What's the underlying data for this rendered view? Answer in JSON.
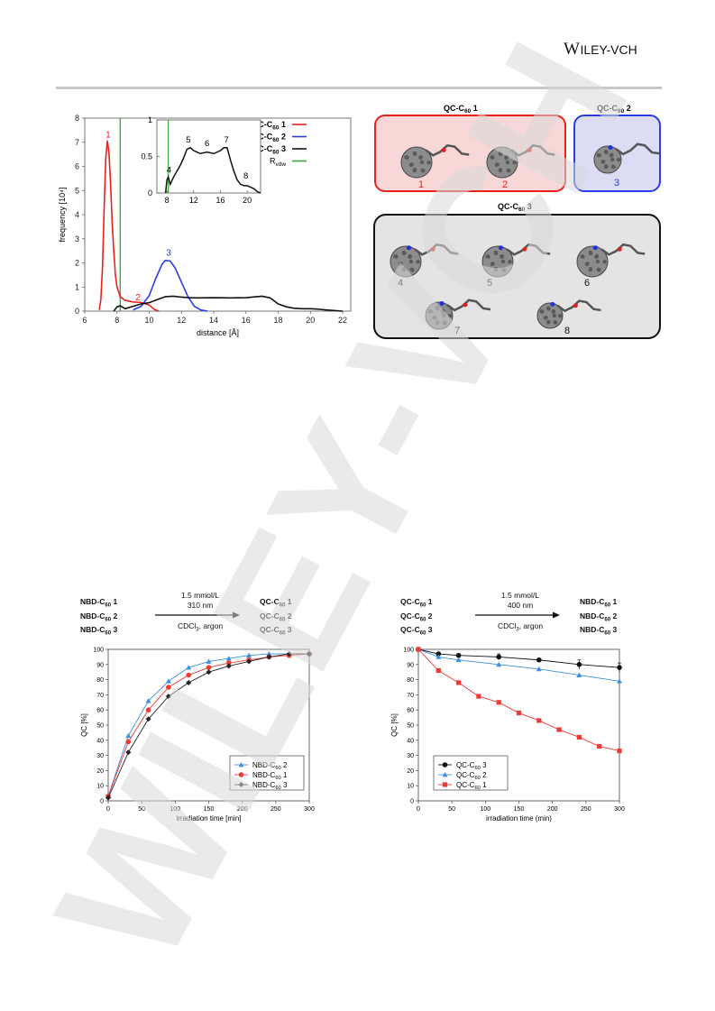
{
  "header": {
    "logo_main": "W",
    "logo_rest": "ILEY",
    "logo_suffix": "-VCH"
  },
  "watermark": {
    "text": "WILEY-VCH",
    "color": "#d9d9d9"
  },
  "panel_a": {
    "title_main": "QC-C",
    "title_sub": "60",
    "chart_data": {
      "type": "line",
      "xlabel": "distance [Å]",
      "ylabel": "frequency [10⁴]",
      "xlim": [
        6,
        22.5
      ],
      "ylim": [
        0,
        8
      ],
      "xticks": [
        6,
        8,
        10,
        12,
        14,
        16,
        18,
        20,
        22
      ],
      "yticks": [
        0,
        1,
        2,
        3,
        4,
        5,
        6,
        7,
        8
      ],
      "series": [
        {
          "name": "QC-C60 1",
          "color": "#e8221d",
          "x": [
            6.9,
            7.0,
            7.1,
            7.2,
            7.3,
            7.4,
            7.5,
            7.6,
            7.7,
            7.8,
            7.9,
            8.0,
            8.2,
            8.5,
            9.0,
            9.5,
            10.0,
            10.3,
            10.6
          ],
          "y": [
            0.05,
            0.5,
            1.8,
            4.2,
            6.3,
            7.05,
            6.6,
            5.3,
            3.7,
            2.5,
            1.5,
            1.0,
            0.6,
            0.45,
            0.38,
            0.36,
            0.25,
            0.08,
            0.0
          ]
        },
        {
          "name": "QC-C60 2",
          "color": "#2a3ee8",
          "x": [
            9.0,
            9.5,
            10.0,
            10.4,
            10.8,
            11.0,
            11.3,
            11.6,
            12.0,
            12.4,
            12.8,
            13.2,
            13.6
          ],
          "y": [
            0.05,
            0.2,
            0.65,
            1.35,
            1.95,
            2.1,
            2.08,
            1.8,
            1.2,
            0.6,
            0.2,
            0.05,
            0.0
          ]
        },
        {
          "name": "QC-C60 3",
          "color": "#111111",
          "x": [
            7.8,
            8.0,
            8.2,
            8.5,
            9.0,
            9.5,
            10.0,
            10.5,
            11.0,
            11.5,
            12.0,
            12.5,
            13.0,
            14.0,
            15.0,
            16.0,
            17.0,
            17.5,
            18.0,
            18.5,
            19.0,
            19.5,
            20.0,
            20.5,
            21.0,
            22.0
          ],
          "y": [
            0.0,
            0.18,
            0.22,
            0.1,
            0.2,
            0.3,
            0.35,
            0.48,
            0.6,
            0.62,
            0.58,
            0.56,
            0.55,
            0.56,
            0.55,
            0.56,
            0.62,
            0.55,
            0.3,
            0.18,
            0.12,
            0.1,
            0.1,
            0.08,
            0.05,
            0.0
          ]
        }
      ],
      "vline": {
        "name": "R_vdw",
        "x": 8.2,
        "color": "#3aa83a"
      },
      "peak_labels": [
        {
          "text": "1",
          "x": 7.45,
          "y": 7.2,
          "color": "#e8221d"
        },
        {
          "text": "2",
          "x": 9.3,
          "y": 0.45,
          "color": "#e8221d"
        },
        {
          "text": "3",
          "x": 11.2,
          "y": 2.3,
          "color": "#2a3ee8"
        }
      ],
      "legend": [
        {
          "main": "QC-C",
          "sub": "60",
          "suffix": " 1",
          "color": "#e8221d"
        },
        {
          "main": "QC-C",
          "sub": "60",
          "suffix": " 2",
          "color": "#2a3ee8"
        },
        {
          "main": "QC-C",
          "sub": "60",
          "suffix": " 3",
          "color": "#111111"
        },
        {
          "main": "R",
          "sub": "vdw",
          "suffix": "",
          "color": "#3aa83a"
        }
      ],
      "inset": {
        "xlim": [
          6.5,
          22
        ],
        "ylim": [
          0,
          1
        ],
        "xticks": [
          8,
          12,
          16,
          20
        ],
        "yticks": [
          0,
          0.5,
          1
        ],
        "yticklabels": [
          "0",
          "0.5",
          "1"
        ],
        "x": [
          7.8,
          8.0,
          8.2,
          8.5,
          9.0,
          9.5,
          10.0,
          10.5,
          11.0,
          11.5,
          12.0,
          12.5,
          13.0,
          14.0,
          15.0,
          16.0,
          16.5,
          17.0,
          17.5,
          18.0,
          18.5,
          19.0,
          19.5,
          20.0,
          20.5,
          21.0,
          21.5,
          22.0
        ],
        "y": [
          0.0,
          0.18,
          0.22,
          0.12,
          0.22,
          0.3,
          0.38,
          0.48,
          0.6,
          0.62,
          0.58,
          0.56,
          0.54,
          0.56,
          0.54,
          0.58,
          0.62,
          0.62,
          0.45,
          0.3,
          0.18,
          0.12,
          0.1,
          0.1,
          0.08,
          0.06,
          0.02,
          0.0
        ],
        "labels": [
          {
            "text": "4",
            "x": 8.3,
            "y": 0.28
          },
          {
            "text": "5",
            "x": 11.2,
            "y": 0.69
          },
          {
            "text": "6",
            "x": 14.0,
            "y": 0.64
          },
          {
            "text": "7",
            "x": 16.9,
            "y": 0.69
          },
          {
            "text": "8",
            "x": 19.8,
            "y": 0.2
          }
        ]
      }
    }
  },
  "panel_b": {
    "box1_title": "1",
    "box2_title": "2",
    "box3_title": "3",
    "labels_box1": [
      "1",
      "2"
    ],
    "labels_box2": [
      "3"
    ],
    "labels_box3": [
      "4",
      "5",
      "6",
      "7",
      "8"
    ],
    "colors": {
      "box1_fill": "#f8d7d7",
      "box1_stroke": "#e8221d",
      "box2_fill": "#dcdcf5",
      "box2_stroke": "#2a3ee8",
      "box3_fill": "#e4e4e4",
      "box3_stroke": "#111111"
    }
  },
  "scheme_left": {
    "reactants": [
      {
        "main": "NBD-C",
        "sub": "60",
        "suffix": " 1"
      },
      {
        "main": "NBD-C",
        "sub": "60",
        "suffix": " 2"
      },
      {
        "main": "NBD-C",
        "sub": "60",
        "suffix": " 3"
      }
    ],
    "conditions_top": [
      "1.5 mmol/L",
      "310 nm"
    ],
    "conditions_bottom_main": "CDCl",
    "conditions_bottom_sub": "3",
    "conditions_bottom_rest": ", argon",
    "products": [
      {
        "main": "QC-C",
        "sub": "60",
        "suffix": " 1"
      },
      {
        "main": "QC-C",
        "sub": "60",
        "suffix": " 2"
      },
      {
        "main": "QC-C",
        "sub": "60",
        "suffix": " 3"
      }
    ]
  },
  "scheme_right": {
    "reactants": [
      {
        "main": "QC-C",
        "sub": "60",
        "suffix": " 1"
      },
      {
        "main": "QC-C",
        "sub": "60",
        "suffix": " 2"
      },
      {
        "main": "QC-C",
        "sub": "60",
        "suffix": " 3"
      }
    ],
    "conditions_top": [
      "1.5 mmol/L",
      "400 nm"
    ],
    "conditions_bottom_main": "CDCl",
    "conditions_bottom_sub": "3",
    "conditions_bottom_rest": ", argon",
    "products": [
      {
        "main": "NBD-C",
        "sub": "60",
        "suffix": " 1"
      },
      {
        "main": "NBD-C",
        "sub": "60",
        "suffix": " 2"
      },
      {
        "main": "NBD-C",
        "sub": "60",
        "suffix": " 3"
      }
    ]
  },
  "chart_c": {
    "chart_data": {
      "type": "line",
      "xlabel": "irradiation time [min]",
      "ylabel": "QC [%]",
      "xlim": [
        0,
        300
      ],
      "ylim": [
        0,
        100
      ],
      "xticks": [
        0,
        50,
        100,
        150,
        200,
        250,
        300
      ],
      "yticks": [
        0,
        10,
        20,
        30,
        40,
        50,
        60,
        70,
        80,
        90,
        100
      ],
      "series": [
        {
          "name": "NBD-C60 2",
          "color": "#3d8fe0",
          "marker": "triangle",
          "x": [
            0,
            30,
            60,
            90,
            120,
            150,
            180,
            210,
            240,
            270,
            300
          ],
          "y": [
            3,
            43,
            66,
            79,
            88,
            92,
            94,
            96,
            97,
            97,
            97
          ]
        },
        {
          "name": "NBD-C60 1",
          "color": "#ec3a35",
          "marker": "circle",
          "x": [
            0,
            30,
            60,
            90,
            120,
            150,
            180,
            210,
            240,
            270,
            300
          ],
          "y": [
            3,
            39,
            60,
            75,
            83,
            88,
            91,
            93,
            95,
            96,
            97
          ]
        },
        {
          "name": "NBD-C60 3",
          "color": "#222222",
          "marker": "diamond",
          "x": [
            0,
            30,
            60,
            90,
            120,
            150,
            180,
            210,
            240,
            270,
            300
          ],
          "y": [
            2,
            32,
            54,
            69,
            78,
            85,
            89,
            92,
            95,
            97,
            97
          ]
        }
      ],
      "legend": [
        {
          "main": "NBD-C",
          "sub": "60",
          "suffix": " 2"
        },
        {
          "main": "NBD-C",
          "sub": "60",
          "suffix": " 1"
        },
        {
          "main": "NBD-C",
          "sub": "60",
          "suffix": " 3"
        }
      ]
    }
  },
  "chart_d": {
    "chart_data": {
      "type": "scatter",
      "xlabel": "irradiation time (min)",
      "ylabel": "QC [%]",
      "xlim": [
        0,
        300
      ],
      "ylim": [
        0,
        100
      ],
      "xticks": [
        0,
        50,
        100,
        150,
        200,
        250,
        300
      ],
      "yticks": [
        0,
        10,
        20,
        30,
        40,
        50,
        60,
        70,
        80,
        90,
        100
      ],
      "series": [
        {
          "name": "QC-C60 3",
          "color": "#111111",
          "marker": "circle",
          "x": [
            0,
            30,
            60,
            120,
            180,
            240,
            300
          ],
          "y": [
            100,
            97,
            96,
            95,
            93,
            90,
            88
          ],
          "err": [
            0,
            1,
            1,
            2,
            1,
            3,
            3
          ]
        },
        {
          "name": "QC-C60 2",
          "color": "#3d8fe0",
          "marker": "triangle",
          "x": [
            0,
            30,
            60,
            120,
            180,
            240,
            300
          ],
          "y": [
            100,
            95,
            93,
            90,
            87,
            83,
            79
          ]
        },
        {
          "name": "QC-C60 1",
          "color": "#ec3a35",
          "marker": "square",
          "x": [
            0,
            30,
            60,
            90,
            120,
            150,
            180,
            210,
            240,
            270,
            300
          ],
          "y": [
            100,
            86,
            78,
            69,
            65,
            58,
            53,
            47,
            42,
            36,
            33
          ]
        }
      ],
      "legend": [
        {
          "main": "QC-C",
          "sub": "60",
          "suffix": " 3"
        },
        {
          "main": "QC-C",
          "sub": "60",
          "suffix": " 2"
        },
        {
          "main": "QC-C",
          "sub": "60",
          "suffix": " 1"
        }
      ]
    }
  }
}
